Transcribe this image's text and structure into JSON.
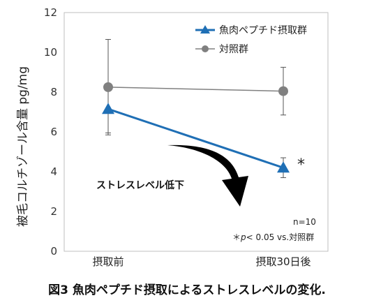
{
  "caption": "図3 魚肉ペプチド摂取によるストレスレベルの変化.",
  "chart_data": {
    "type": "line",
    "ylabel": "被毛コルチゾール含量 pg/mg",
    "ylim": [
      0,
      12
    ],
    "yticks": [
      0,
      2,
      4,
      6,
      8,
      10,
      12
    ],
    "categories": [
      "摂取前",
      "摂取30日後"
    ],
    "series": [
      {
        "name": "魚肉ペプチド摂取群",
        "values": [
          7.15,
          4.2
        ],
        "error": [
          1.2,
          0.5
        ],
        "color": "#1f6fb5",
        "marker": "triangle"
      },
      {
        "name": "対照群",
        "values": [
          8.25,
          8.05
        ],
        "error": [
          2.4,
          1.2
        ],
        "color": "#808080",
        "marker": "circle"
      }
    ],
    "legend_position": "top-right",
    "annotations": {
      "arrow_text": "ストレスレベル低下",
      "significance_mark": "*",
      "n_note": "n=10",
      "p_note_prefix": "＊",
      "p_note_italic": "p",
      "p_note_suffix": "< 0.05 vs.対照群"
    }
  }
}
